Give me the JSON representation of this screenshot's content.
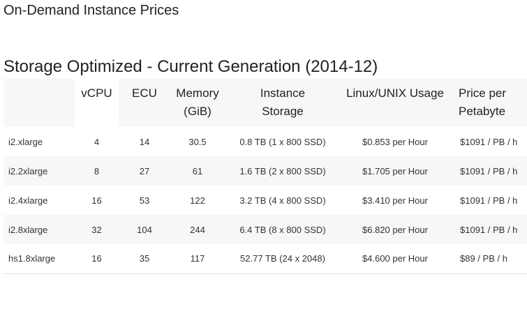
{
  "page": {
    "title": "On-Demand Instance Prices",
    "section_title": "Storage Optimized - Current Generation (2014-12)"
  },
  "table": {
    "headers": {
      "vcpu": "vCPU",
      "ecu": "ECU",
      "memory_line1": "Memory",
      "memory_line2": "(GiB)",
      "storage_line1": "Instance",
      "storage_line2": "Storage",
      "usage": "Linux/UNIX Usage",
      "price_line1": "Price per",
      "price_line2": "Petabyte"
    },
    "rows": [
      {
        "name": "i2.xlarge",
        "vcpu": "4",
        "ecu": "14",
        "memory": "30.5",
        "storage": "0.8 TB (1 x 800 SSD)",
        "usage": "$0.853 per Hour",
        "price": "$1091 / PB / h"
      },
      {
        "name": "i2.2xlarge",
        "vcpu": "8",
        "ecu": "27",
        "memory": "61",
        "storage": "1.6 TB (2 x 800 SSD)",
        "usage": "$1.705 per Hour",
        "price": "$1091 / PB / h"
      },
      {
        "name": "i2.4xlarge",
        "vcpu": "16",
        "ecu": "53",
        "memory": "122",
        "storage": "3.2 TB (4 x 800 SSD)",
        "usage": "$3.410 per Hour",
        "price": "$1091 / PB / h"
      },
      {
        "name": "i2.8xlarge",
        "vcpu": "32",
        "ecu": "104",
        "memory": "244",
        "storage": "6.4 TB (8 x 800 SSD)",
        "usage": "$6.820 per Hour",
        "price": "$1091 / PB / h"
      },
      {
        "name": "hs1.8xlarge",
        "vcpu": "16",
        "ecu": "35",
        "memory": "117",
        "storage": "52.77 TB (24 x 2048)",
        "usage": "$4.600 per Hour",
        "price": "$89 / PB / h"
      }
    ]
  }
}
